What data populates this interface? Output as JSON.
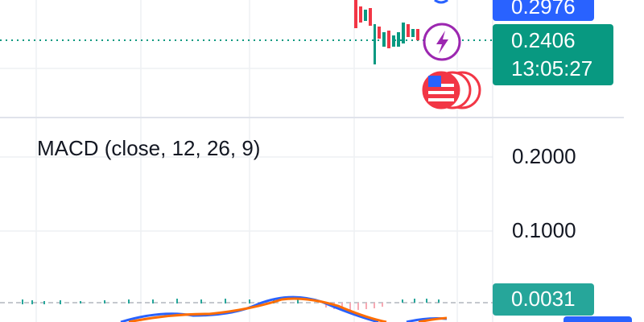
{
  "price_scale": {
    "high_tag": "0.2976",
    "last_price": "0.2406",
    "countdown": "13:05:27"
  },
  "indicator": {
    "label": "MACD (close, 12, 26, 9)",
    "ticks": [
      "0.2000",
      "0.1000"
    ],
    "value_tag": "0.0031"
  }
}
